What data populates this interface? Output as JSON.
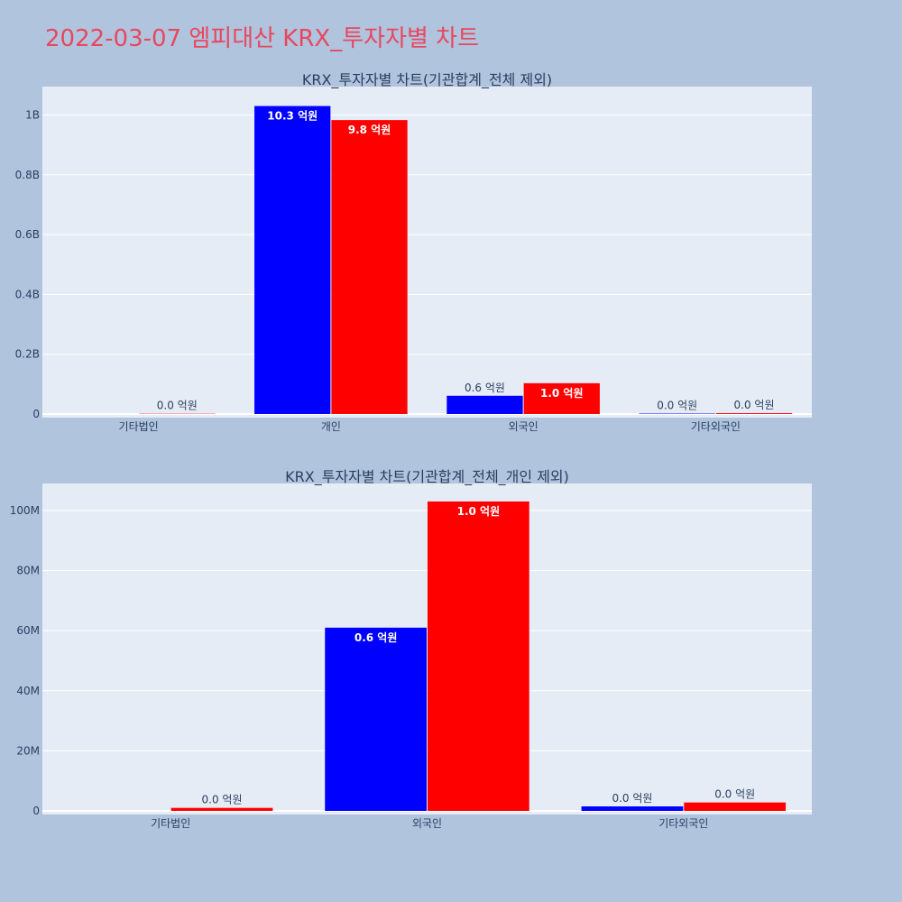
{
  "page_title": "2022-03-07 엠피대산 KRX_투자자별 차트",
  "colors": {
    "background": "#b0c4de",
    "plot_bg": "#e5ecf6",
    "title": "#e8475f",
    "series_a": "#0000ff",
    "series_b": "#ff0000",
    "text": "#2a3f5f",
    "grid": "#ffffff"
  },
  "chart_data": [
    {
      "type": "bar",
      "title": "KRX_투자자별 차트(기관합계_전체 제외)",
      "categories": [
        "기타법인",
        "개인",
        "외국인",
        "기타외국인"
      ],
      "series": [
        {
          "color": "#0000ff",
          "values": [
            0,
            1030000000,
            61000000,
            1500000
          ],
          "labels": [
            "",
            "10.3 억원",
            "0.6 억원",
            "0.0 억원"
          ]
        },
        {
          "color": "#ff0000",
          "values": [
            1000000,
            983000000,
            103000000,
            2800000
          ],
          "labels": [
            "0.0 억원",
            "9.8 억원",
            "1.0 억원",
            "0.0 억원"
          ]
        }
      ],
      "yticks": [
        0,
        200000000,
        400000000,
        600000000,
        800000000,
        1000000000
      ],
      "ytick_labels": [
        "0",
        "0.2B",
        "0.4B",
        "0.6B",
        "0.8B",
        "1B"
      ],
      "ylim": [
        0,
        1095000000
      ],
      "grid": true
    },
    {
      "type": "bar",
      "title": "KRX_투자자별 차트(기관합계_전체_개인 제외)",
      "categories": [
        "기타법인",
        "외국인",
        "기타외국인"
      ],
      "series": [
        {
          "color": "#0000ff",
          "values": [
            0,
            61000000,
            1500000
          ],
          "labels": [
            "",
            "0.6 억원",
            "0.0 억원"
          ]
        },
        {
          "color": "#ff0000",
          "values": [
            1000000,
            103000000,
            2800000
          ],
          "labels": [
            "0.0 억원",
            "1.0 억원",
            "0.0 억원"
          ]
        }
      ],
      "yticks": [
        0,
        20000000,
        40000000,
        60000000,
        80000000,
        100000000
      ],
      "ytick_labels": [
        "0",
        "20M",
        "40M",
        "60M",
        "80M",
        "100M"
      ],
      "ylim": [
        0,
        109000000
      ],
      "grid": true
    }
  ]
}
